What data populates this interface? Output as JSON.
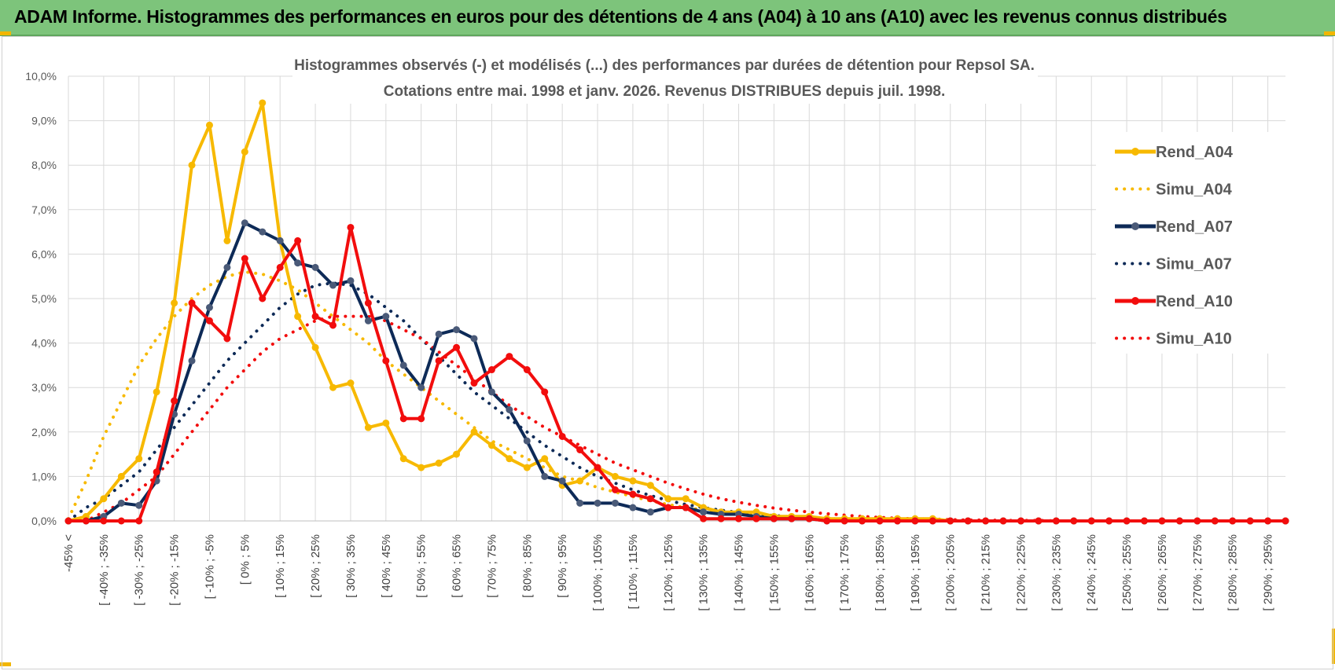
{
  "banner": {
    "title": "ADAM Informe. Histogrammes des performances en euros pour des détentions de 4 ans (A04) à 10 ans (A10) avec les revenus connus distribués"
  },
  "colors": {
    "banner_bg": "#7dc47b",
    "A04": "#f7b900",
    "A07": "#0d2a57",
    "A07_marker": "#4a5a78",
    "A10": "#f20d0d",
    "grid": "#d9d9d9"
  },
  "chart_data": {
    "type": "line",
    "title": "Histogrammes observés (-) et modélisés (...) des performances par durées de détention pour Repsol SA.",
    "subtitle": "Cotations entre mai. 1998 et janv. 2026. Revenus DISTRIBUES depuis juil. 1998.",
    "xlabel": "",
    "ylabel": "",
    "ylim": [
      0,
      10
    ],
    "y_ticks": [
      "0,0%",
      "1,0%",
      "2,0%",
      "3,0%",
      "4,0%",
      "5,0%",
      "6,0%",
      "7,0%",
      "8,0%",
      "9,0%",
      "10,0%"
    ],
    "x_tick_labels": [
      "-45% <",
      "[ -40% ; -35%",
      "[ -30% ; -25%",
      "[ -20% ; -15%",
      "[ -10% ; -5%",
      "[ 0% ; 5%",
      "[ 10% ; 15%",
      "[ 20% ; 25%",
      "[ 30% ; 35%",
      "[ 40% ; 45%",
      "[ 50% ; 55%",
      "[ 60% ; 65%",
      "[ 70% ; 75%",
      "[ 80% ; 85%",
      "[ 90% ; 95%",
      "[ 100% ; 105%",
      "[ 110% ; 115%",
      "[ 120% ; 125%",
      "[ 130% ; 135%",
      "[ 140% ; 145%",
      "[ 150% ; 155%",
      "[ 160% ; 165%",
      "[ 170% ; 175%",
      "[ 180% ; 185%",
      "[ 190% ; 195%",
      "[ 200% ; 205%",
      "[ 210% ; 215%",
      "[ 220% ; 225%",
      "[ 230% ; 235%",
      "[ 240% ; 245%",
      "[ 250% ; 255%",
      "[ 260% ; 265%",
      "[ 270% ; 275%",
      "[ 280% ; 285%",
      "[ 290% ; 295%"
    ],
    "n_points": 70,
    "legend_position": "right",
    "series": [
      {
        "name": "Rend_A04",
        "style": "solid",
        "color": "#f7b900",
        "values": [
          0.0,
          0.1,
          0.5,
          1.0,
          1.4,
          2.9,
          4.9,
          8.0,
          8.9,
          6.3,
          8.3,
          9.4,
          6.3,
          4.6,
          3.9,
          3.0,
          3.1,
          2.1,
          2.2,
          1.4,
          1.2,
          1.3,
          1.5,
          2.0,
          1.7,
          1.4,
          1.2,
          1.4,
          0.8,
          0.9,
          1.2,
          1.0,
          0.9,
          0.8,
          0.5,
          0.5,
          0.3,
          0.2,
          0.2,
          0.2,
          0.1,
          0.1,
          0.1,
          0.05,
          0.05,
          0.05,
          0.05,
          0.05,
          0.05,
          0.05,
          0,
          0,
          0,
          0,
          0,
          0,
          0,
          0,
          0,
          0,
          0,
          0,
          0,
          0,
          0,
          0,
          0,
          0,
          0,
          0
        ]
      },
      {
        "name": "Simu_A04",
        "style": "dotted",
        "color": "#f7b900",
        "values": [
          0.05,
          0.9,
          1.9,
          2.7,
          3.5,
          4.1,
          4.6,
          5.0,
          5.3,
          5.5,
          5.6,
          5.55,
          5.4,
          5.2,
          4.9,
          4.6,
          4.3,
          4.0,
          3.6,
          3.3,
          3.0,
          2.7,
          2.4,
          2.1,
          1.8,
          1.6,
          1.4,
          1.2,
          1.0,
          0.9,
          0.75,
          0.65,
          0.55,
          0.45,
          0.37,
          0.3,
          0.25,
          0.2,
          0.16,
          0.13,
          0.1,
          0.08,
          0.06,
          0.05,
          0.04,
          0.03,
          0.02,
          0.02,
          0.01,
          0.01,
          0.01,
          0,
          0,
          0,
          0,
          0,
          0,
          0,
          0,
          0,
          0,
          0,
          0,
          0,
          0,
          0,
          0,
          0,
          0,
          0
        ]
      },
      {
        "name": "Rend_A07",
        "style": "solid",
        "color": "#0d2a57",
        "values": [
          0.0,
          0.0,
          0.1,
          0.4,
          0.35,
          0.9,
          2.4,
          3.6,
          4.8,
          5.7,
          6.7,
          6.5,
          6.3,
          5.8,
          5.7,
          5.3,
          5.4,
          4.5,
          4.6,
          3.5,
          3.0,
          4.2,
          4.3,
          4.1,
          2.9,
          2.5,
          1.8,
          1.0,
          0.9,
          0.4,
          0.4,
          0.4,
          0.3,
          0.2,
          0.3,
          0.3,
          0.2,
          0.15,
          0.15,
          0.1,
          0.05,
          0.05,
          0.05,
          0,
          0,
          0,
          0,
          0,
          0,
          0,
          0,
          0,
          0,
          0,
          0,
          0,
          0,
          0,
          0,
          0,
          0,
          0,
          0,
          0,
          0,
          0,
          0,
          0,
          0,
          0
        ]
      },
      {
        "name": "Simu_A07",
        "style": "dotted",
        "color": "#0d2a57",
        "values": [
          0.0,
          0.3,
          0.5,
          0.8,
          1.1,
          1.6,
          2.1,
          2.6,
          3.1,
          3.6,
          4.0,
          4.4,
          4.8,
          5.1,
          5.3,
          5.35,
          5.3,
          5.1,
          4.8,
          4.5,
          4.1,
          3.7,
          3.3,
          2.9,
          2.6,
          2.3,
          2.0,
          1.7,
          1.45,
          1.2,
          1.0,
          0.85,
          0.7,
          0.57,
          0.46,
          0.37,
          0.3,
          0.24,
          0.19,
          0.15,
          0.12,
          0.09,
          0.07,
          0.05,
          0.04,
          0.03,
          0.02,
          0.02,
          0.01,
          0.01,
          0.01,
          0,
          0,
          0,
          0,
          0,
          0,
          0,
          0,
          0,
          0,
          0,
          0,
          0,
          0,
          0,
          0,
          0,
          0,
          0
        ]
      },
      {
        "name": "Rend_A10",
        "style": "solid",
        "color": "#f20d0d",
        "values": [
          0.0,
          0.0,
          0.0,
          0.0,
          0.0,
          1.1,
          2.7,
          4.9,
          4.5,
          4.1,
          5.9,
          5.0,
          5.7,
          6.3,
          4.6,
          4.4,
          6.6,
          4.9,
          3.6,
          2.3,
          2.3,
          3.6,
          3.9,
          3.1,
          3.4,
          3.7,
          3.4,
          2.9,
          1.9,
          1.6,
          1.2,
          0.7,
          0.6,
          0.5,
          0.3,
          0.3,
          0.05,
          0.05,
          0.05,
          0.05,
          0.05,
          0.05,
          0.05,
          0,
          0,
          0,
          0,
          0,
          0,
          0,
          0,
          0,
          0,
          0,
          0,
          0,
          0,
          0,
          0,
          0,
          0,
          0,
          0,
          0,
          0,
          0,
          0,
          0,
          0,
          0
        ]
      },
      {
        "name": "Simu_A10",
        "style": "dotted",
        "color": "#f20d0d",
        "values": [
          0.0,
          0.0,
          0.2,
          0.4,
          0.7,
          1.0,
          1.5,
          2.0,
          2.5,
          3.0,
          3.4,
          3.8,
          4.1,
          4.3,
          4.5,
          4.6,
          4.6,
          4.6,
          4.5,
          4.3,
          4.1,
          3.8,
          3.5,
          3.2,
          2.9,
          2.6,
          2.35,
          2.1,
          1.9,
          1.7,
          1.5,
          1.3,
          1.15,
          1.0,
          0.85,
          0.72,
          0.6,
          0.5,
          0.42,
          0.35,
          0.29,
          0.24,
          0.2,
          0.16,
          0.13,
          0.1,
          0.08,
          0.06,
          0.05,
          0.04,
          0.03,
          0.02,
          0.02,
          0.01,
          0.01,
          0.01,
          0,
          0,
          0,
          0,
          0,
          0,
          0,
          0,
          0,
          0,
          0,
          0,
          0,
          0
        ]
      }
    ]
  }
}
